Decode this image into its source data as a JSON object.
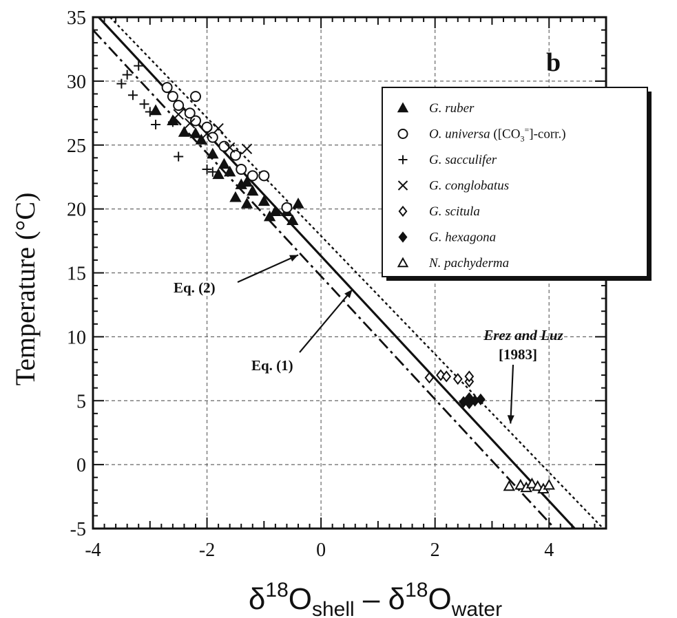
{
  "chart_data": {
    "type": "scatter",
    "panel_label": "b",
    "xlabel": {
      "delta": "δ",
      "sup1": "18",
      "o1": "O",
      "sub1": "shell",
      "minus": " – ",
      "sup2": "18",
      "o2": "O",
      "sub2": "water"
    },
    "ylabel": "Temperature (°C)",
    "xlim": [
      -4,
      5
    ],
    "ylim": [
      -5,
      35
    ],
    "x_ticks": [
      -4,
      -2,
      0,
      2,
      4
    ],
    "x_tick_labels": [
      "-4",
      "-2",
      "0",
      "2",
      "4"
    ],
    "y_ticks": [
      -5,
      0,
      5,
      10,
      15,
      20,
      25,
      30,
      35
    ],
    "y_tick_labels": [
      "-5",
      "0",
      "5",
      "10",
      "15",
      "20",
      "25",
      "30",
      "35"
    ],
    "grid": true,
    "legend_position": "top-right",
    "series": [
      {
        "name": "G. ruber",
        "marker": "triangle-filled",
        "points": [
          [
            -2.6,
            26.9
          ],
          [
            -2.4,
            26.0
          ],
          [
            -2.1,
            25.4
          ],
          [
            -1.9,
            24.3
          ],
          [
            -1.7,
            23.5
          ],
          [
            -1.6,
            22.9
          ],
          [
            -1.8,
            22.7
          ],
          [
            -1.4,
            21.9
          ],
          [
            -1.3,
            22.1
          ],
          [
            -1.2,
            21.4
          ],
          [
            -1.5,
            20.9
          ],
          [
            -1.3,
            20.4
          ],
          [
            -1.0,
            20.6
          ],
          [
            -0.9,
            19.4
          ],
          [
            -0.8,
            19.8
          ],
          [
            -0.6,
            19.8
          ],
          [
            -0.5,
            19.1
          ],
          [
            -0.4,
            20.4
          ],
          [
            -2.9,
            27.7
          ],
          [
            -2.2,
            25.9
          ]
        ]
      },
      {
        "name": "O. universa ([CO3=]-corr.)",
        "legend_parts": [
          "O. universa",
          " ([CO",
          "3",
          "=",
          "]-corr.)"
        ],
        "marker": "circle-open",
        "points": [
          [
            -2.7,
            29.5
          ],
          [
            -2.6,
            28.8
          ],
          [
            -2.2,
            28.8
          ],
          [
            -2.5,
            28.1
          ],
          [
            -2.3,
            27.5
          ],
          [
            -2.2,
            26.9
          ],
          [
            -2.0,
            26.4
          ],
          [
            -1.9,
            25.6
          ],
          [
            -1.7,
            24.9
          ],
          [
            -1.5,
            24.2
          ],
          [
            -1.4,
            23.1
          ],
          [
            -1.2,
            22.6
          ],
          [
            -1.0,
            22.6
          ],
          [
            -0.6,
            20.1
          ]
        ]
      },
      {
        "name": "G. sacculifer",
        "marker": "plus",
        "points": [
          [
            -3.5,
            29.8
          ],
          [
            -3.4,
            30.5
          ],
          [
            -3.2,
            31.2
          ],
          [
            -3.3,
            28.9
          ],
          [
            -3.1,
            28.2
          ],
          [
            -3.0,
            27.6
          ],
          [
            -2.9,
            26.6
          ],
          [
            -2.5,
            24.1
          ],
          [
            -2.0,
            23.1
          ],
          [
            -1.9,
            22.9
          ],
          [
            -2.6,
            26.8
          ]
        ]
      },
      {
        "name": "G. conglobatus",
        "marker": "x",
        "points": [
          [
            -2.5,
            27.4
          ],
          [
            -2.3,
            26.7
          ],
          [
            -2.0,
            25.9
          ],
          [
            -1.8,
            26.3
          ],
          [
            -1.6,
            24.8
          ],
          [
            -1.3,
            24.7
          ]
        ]
      },
      {
        "name": "G. scitula",
        "marker": "diamond-open",
        "points": [
          [
            1.9,
            6.8
          ],
          [
            2.1,
            7.0
          ],
          [
            2.4,
            6.7
          ],
          [
            2.6,
            6.5
          ],
          [
            2.6,
            6.9
          ],
          [
            2.2,
            6.9
          ]
        ]
      },
      {
        "name": "G. hexagona",
        "marker": "diamond-filled",
        "points": [
          [
            2.5,
            4.9
          ],
          [
            2.6,
            5.2
          ],
          [
            2.7,
            5.0
          ],
          [
            2.8,
            5.1
          ],
          [
            2.6,
            4.8
          ]
        ]
      },
      {
        "name": "N. pachyderma",
        "marker": "triangle-open",
        "points": [
          [
            3.3,
            -1.7
          ],
          [
            3.5,
            -1.6
          ],
          [
            3.6,
            -1.8
          ],
          [
            3.7,
            -1.5
          ],
          [
            3.8,
            -1.7
          ],
          [
            3.9,
            -1.9
          ],
          [
            4.0,
            -1.6
          ]
        ]
      }
    ],
    "lines": [
      {
        "name": "Eq. (1)",
        "style": "solid",
        "x": [
          -3.9,
          4.45
        ],
        "y": [
          35.0,
          -5.0
        ]
      },
      {
        "name": "Eq. (2)",
        "style": "dash-dot",
        "x": [
          -4.0,
          4.1
        ],
        "y": [
          34.0,
          -5.0
        ]
      },
      {
        "name": "Erez and Luz [1983]",
        "style": "dotted",
        "x": [
          -3.7,
          4.95
        ],
        "y": [
          35.0,
          -5.0
        ]
      }
    ],
    "annotations": [
      {
        "text": "Eq. (2)",
        "target_x": -0.4,
        "target_y": 16.4
      },
      {
        "text": "Eq. (1)",
        "target_x": 0.55,
        "target_y": 13.7
      },
      {
        "line1": "Erez and Luz",
        "line2": "[1983]",
        "target_x": 3.3,
        "target_y": 3.0
      }
    ]
  }
}
